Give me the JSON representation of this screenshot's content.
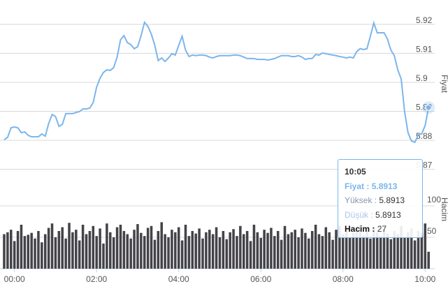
{
  "chart_data": {
    "type": "line",
    "x": [
      "23:45",
      "23:50",
      "23:55",
      "00:00",
      "00:05",
      "00:10",
      "00:15",
      "00:20",
      "00:25",
      "00:30",
      "00:35",
      "00:40",
      "00:45",
      "00:50",
      "00:55",
      "01:00",
      "01:05",
      "01:10",
      "01:15",
      "01:20",
      "01:25",
      "01:30",
      "01:35",
      "01:40",
      "01:45",
      "01:50",
      "01:55",
      "02:00",
      "02:05",
      "02:10",
      "02:15",
      "02:20",
      "02:25",
      "02:30",
      "02:35",
      "02:40",
      "02:45",
      "02:50",
      "02:55",
      "03:00",
      "03:05",
      "03:10",
      "03:15",
      "03:20",
      "03:25",
      "03:30",
      "03:35",
      "03:40",
      "03:45",
      "03:50",
      "03:55",
      "04:00",
      "04:05",
      "04:10",
      "04:15",
      "04:20",
      "04:25",
      "04:30",
      "04:35",
      "04:40",
      "04:45",
      "04:50",
      "04:55",
      "05:00",
      "05:05",
      "05:10",
      "05:15",
      "05:20",
      "05:25",
      "05:30",
      "05:35",
      "05:40",
      "05:45",
      "05:50",
      "05:55",
      "06:00",
      "06:05",
      "06:10",
      "06:15",
      "06:20",
      "06:25",
      "06:30",
      "06:35",
      "06:40",
      "06:45",
      "06:50",
      "06:55",
      "07:00",
      "07:05",
      "07:10",
      "07:15",
      "07:20",
      "07:25",
      "07:30",
      "07:35",
      "07:40",
      "07:45",
      "07:50",
      "07:55",
      "08:00",
      "08:05",
      "08:10",
      "08:15",
      "08:20",
      "08:25",
      "08:30",
      "08:35",
      "08:40",
      "08:45",
      "08:50",
      "08:55",
      "09:00",
      "09:05",
      "09:10",
      "09:15",
      "09:20",
      "09:25",
      "09:30",
      "09:35",
      "09:40",
      "09:45",
      "09:50",
      "09:55",
      "10:00",
      "10:05"
    ],
    "xlim": [
      "23:44",
      "10:14"
    ],
    "xticks": [
      "00:00",
      "02:00",
      "04:00",
      "06:00",
      "08:00",
      "10:00"
    ],
    "ylim": [
      5.8694,
      5.9272
    ],
    "yticks": [
      5.87,
      5.88,
      5.89,
      5.9,
      5.91,
      5.92
    ],
    "y2lim": [
      0,
      150
    ],
    "y2ticks": [
      50,
      100
    ],
    "grid": true,
    "series": [
      {
        "name": "Fiyat",
        "type": "line",
        "color": "#7cb5ec",
        "values": [
          5.8802,
          5.881,
          5.8843,
          5.8846,
          5.8843,
          5.8826,
          5.8829,
          5.8817,
          5.8812,
          5.8812,
          5.8812,
          5.8822,
          5.8814,
          5.8858,
          5.8889,
          5.8882,
          5.8848,
          5.8855,
          5.8892,
          5.8892,
          5.8892,
          5.8896,
          5.8899,
          5.8908,
          5.8908,
          5.8911,
          5.893,
          5.8983,
          5.9014,
          5.9034,
          5.9043,
          5.9041,
          5.9051,
          5.9087,
          5.9147,
          5.9161,
          5.9137,
          5.913,
          5.9116,
          5.9123,
          5.9161,
          5.9207,
          5.9193,
          5.9166,
          5.9128,
          5.9075,
          5.9084,
          5.9072,
          5.9084,
          5.9099,
          5.9094,
          5.9128,
          5.9159,
          5.9111,
          5.9089,
          5.9094,
          5.9092,
          5.9094,
          5.9094,
          5.9092,
          5.9087,
          5.9084,
          5.9089,
          5.9092,
          5.9092,
          5.9092,
          5.9092,
          5.9094,
          5.9094,
          5.9092,
          5.9087,
          5.9082,
          5.9082,
          5.9082,
          5.9079,
          5.9079,
          5.9079,
          5.9077,
          5.9079,
          5.9082,
          5.9087,
          5.9092,
          5.9092,
          5.9092,
          5.9089,
          5.9089,
          5.9092,
          5.9087,
          5.9079,
          5.9082,
          5.9082,
          5.9096,
          5.9094,
          5.9101,
          5.9099,
          5.9096,
          5.9094,
          5.9092,
          5.9089,
          5.9087,
          5.9084,
          5.9087,
          5.9084,
          5.9106,
          5.9116,
          5.9113,
          5.9116,
          5.9159,
          5.9205,
          5.9171,
          5.9171,
          5.9171,
          5.9149,
          5.9111,
          5.9092,
          5.9043,
          5.9012,
          5.8899,
          5.8826,
          5.8798,
          5.8793,
          5.8819,
          5.8822,
          5.8851,
          5.8913
        ]
      },
      {
        "name": "Hacim",
        "type": "bar",
        "axis": "y2",
        "color": "#434348",
        "values": [
          55,
          58,
          62,
          44,
          60,
          70,
          52,
          54,
          57,
          48,
          60,
          42,
          55,
          65,
          72,
          50,
          60,
          66,
          48,
          73,
          58,
          62,
          45,
          70,
          55,
          60,
          68,
          52,
          64,
          40,
          72,
          58,
          50,
          66,
          70,
          60,
          55,
          48,
          62,
          71,
          57,
          52,
          65,
          68,
          46,
          60,
          74,
          55,
          50,
          62,
          58,
          66,
          45,
          70,
          52,
          60,
          56,
          64,
          48,
          58,
          62,
          55,
          66,
          50,
          60,
          47,
          58,
          63,
          52,
          68,
          55,
          60,
          44,
          70,
          58,
          49,
          62,
          57,
          65,
          52,
          60,
          46,
          68,
          55,
          58,
          62,
          50,
          64,
          57,
          48,
          60,
          70,
          55,
          52,
          66,
          58,
          46,
          62,
          68,
          55,
          60,
          50,
          57,
          64,
          70,
          53,
          60,
          48,
          66,
          58,
          52,
          62,
          56,
          47,
          60,
          55,
          68,
          50,
          58,
          64,
          45,
          60,
          57,
          72,
          27
        ]
      }
    ],
    "tooltip": {
      "high_label": "Yüksek",
      "high": 5.8913,
      "low_label": "Düşük",
      "low": 5.8913
    }
  }
}
